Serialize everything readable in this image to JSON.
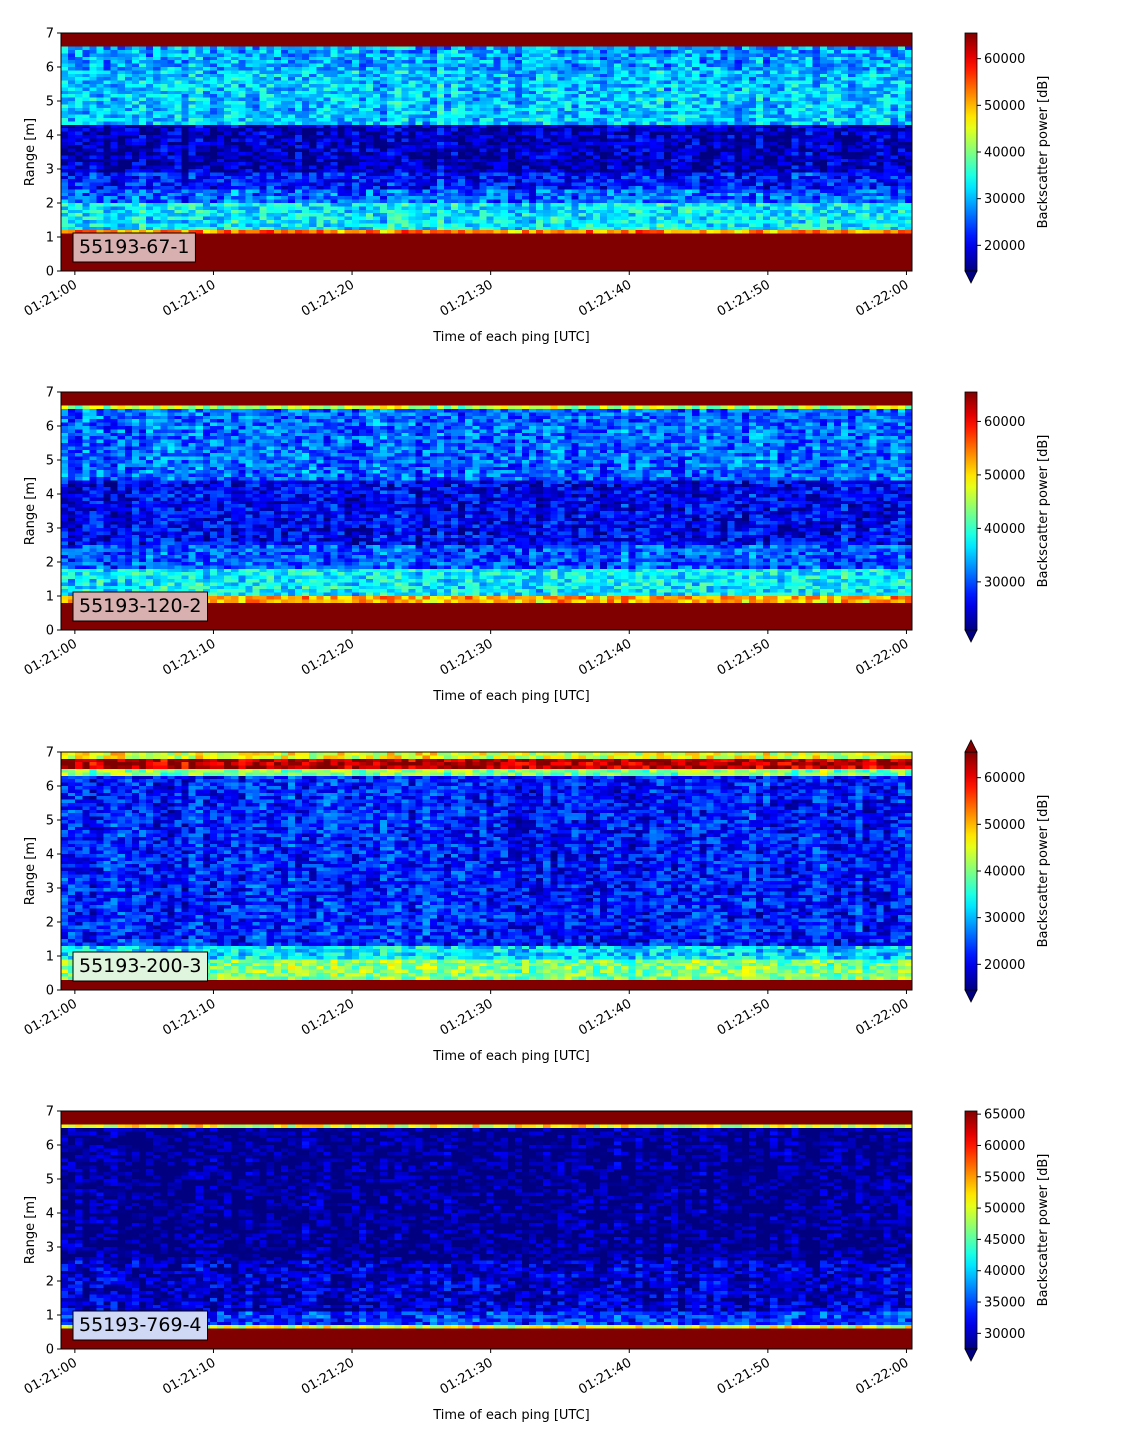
{
  "chart_data": [
    {
      "type": "heatmap",
      "label": "55193-67-1",
      "label_bg": "#d9b0b0",
      "xlabel": "Time of each ping [UTC]",
      "ylabel": "Range [m]",
      "xticks": [
        "01:21:00",
        "01:21:10",
        "01:21:20",
        "01:21:30",
        "01:21:40",
        "01:21:50",
        "01:22:00"
      ],
      "xlim_seconds": [
        -1,
        60.4
      ],
      "ylim": [
        0,
        7
      ],
      "yticks": [
        0,
        1,
        2,
        3,
        4,
        5,
        6,
        7
      ],
      "colormap": "jet",
      "colorbar_label": "Backscatter power [dB]",
      "colorbar_range": [
        14500,
        65500
      ],
      "colorbar_ticks": [
        20000,
        30000,
        40000,
        50000,
        60000
      ],
      "colorbar_extend": "min",
      "profile": [
        [
          0,
          0.2,
          65500
        ],
        [
          0.2,
          1.1,
          65500
        ],
        [
          1.1,
          1.25,
          52000
        ],
        [
          1.25,
          2.0,
          33000
        ],
        [
          2.0,
          2.4,
          26000
        ],
        [
          2.4,
          2.9,
          22000
        ],
        [
          2.9,
          4.3,
          17500
        ],
        [
          4.3,
          5.9,
          31000
        ],
        [
          5.9,
          6.6,
          29000
        ],
        [
          6.6,
          7.0,
          65500
        ]
      ]
    },
    {
      "type": "heatmap",
      "label": "55193-120-2",
      "label_bg": "#d9b0b0",
      "xlabel": "Time of each ping [UTC]",
      "ylabel": "Range [m]",
      "xticks": [
        "01:21:00",
        "01:21:10",
        "01:21:20",
        "01:21:30",
        "01:21:40",
        "01:21:50",
        "01:22:00"
      ],
      "xlim_seconds": [
        -1,
        60.4
      ],
      "ylim": [
        0,
        7
      ],
      "yticks": [
        0,
        1,
        2,
        3,
        4,
        5,
        6,
        7
      ],
      "colormap": "jet",
      "colorbar_label": "Backscatter power [dB]",
      "colorbar_range": [
        21000,
        65500
      ],
      "colorbar_ticks": [
        30000,
        40000,
        50000,
        60000
      ],
      "colorbar_extend": "min",
      "profile": [
        [
          0,
          0.2,
          65500
        ],
        [
          0.2,
          0.8,
          65500
        ],
        [
          0.8,
          1.0,
          52000
        ],
        [
          1.0,
          1.8,
          37000
        ],
        [
          1.8,
          2.5,
          30000
        ],
        [
          2.5,
          4.4,
          26000
        ],
        [
          4.4,
          6.5,
          31000
        ],
        [
          6.5,
          6.6,
          45000
        ],
        [
          6.6,
          7.0,
          65500
        ]
      ]
    },
    {
      "type": "heatmap",
      "label": "55193-200-3",
      "label_bg": "#e0f5dd",
      "xlabel": "Time of each ping [UTC]",
      "ylabel": "Range [m]",
      "xticks": [
        "01:21:00",
        "01:21:10",
        "01:21:20",
        "01:21:30",
        "01:21:40",
        "01:21:50",
        "01:22:00"
      ],
      "xlim_seconds": [
        -1,
        60.4
      ],
      "ylim": [
        0,
        7
      ],
      "yticks": [
        0,
        1,
        2,
        3,
        4,
        5,
        6,
        7
      ],
      "colormap": "jet",
      "colorbar_label": "Backscatter power [dB]",
      "colorbar_range": [
        14500,
        65500
      ],
      "colorbar_ticks": [
        20000,
        30000,
        40000,
        50000,
        60000
      ],
      "colorbar_extend": "both",
      "profile": [
        [
          0,
          0.2,
          65500
        ],
        [
          0.2,
          0.35,
          65500
        ],
        [
          0.35,
          0.9,
          40000
        ],
        [
          0.9,
          1.3,
          32000
        ],
        [
          1.3,
          6.3,
          22000
        ],
        [
          6.3,
          6.5,
          40000
        ],
        [
          6.5,
          6.8,
          63000
        ],
        [
          6.8,
          7.0,
          45000
        ]
      ]
    },
    {
      "type": "heatmap",
      "label": "55193-769-4",
      "label_bg": "#cfd8f5",
      "xlabel": "Time of each ping [UTC]",
      "ylabel": "Range [m]",
      "xticks": [
        "01:21:00",
        "01:21:10",
        "01:21:20",
        "01:21:30",
        "01:21:40",
        "01:21:50",
        "01:22:00"
      ],
      "xlim_seconds": [
        -1,
        60.4
      ],
      "ylim": [
        0,
        7
      ],
      "yticks": [
        0,
        1,
        2,
        3,
        4,
        5,
        6,
        7
      ],
      "colormap": "jet",
      "colorbar_label": "Backscatter power [dB]",
      "colorbar_range": [
        27500,
        65500
      ],
      "colorbar_ticks": [
        30000,
        35000,
        40000,
        45000,
        50000,
        55000,
        60000,
        65000
      ],
      "colorbar_extend": "min",
      "profile": [
        [
          0,
          0.2,
          65500
        ],
        [
          0.2,
          0.65,
          65500
        ],
        [
          0.65,
          0.75,
          50000
        ],
        [
          0.75,
          1.1,
          34000
        ],
        [
          1.1,
          2.6,
          30000
        ],
        [
          2.6,
          6.5,
          27500
        ],
        [
          6.5,
          6.6,
          50000
        ],
        [
          6.6,
          7.0,
          65500
        ]
      ]
    }
  ]
}
